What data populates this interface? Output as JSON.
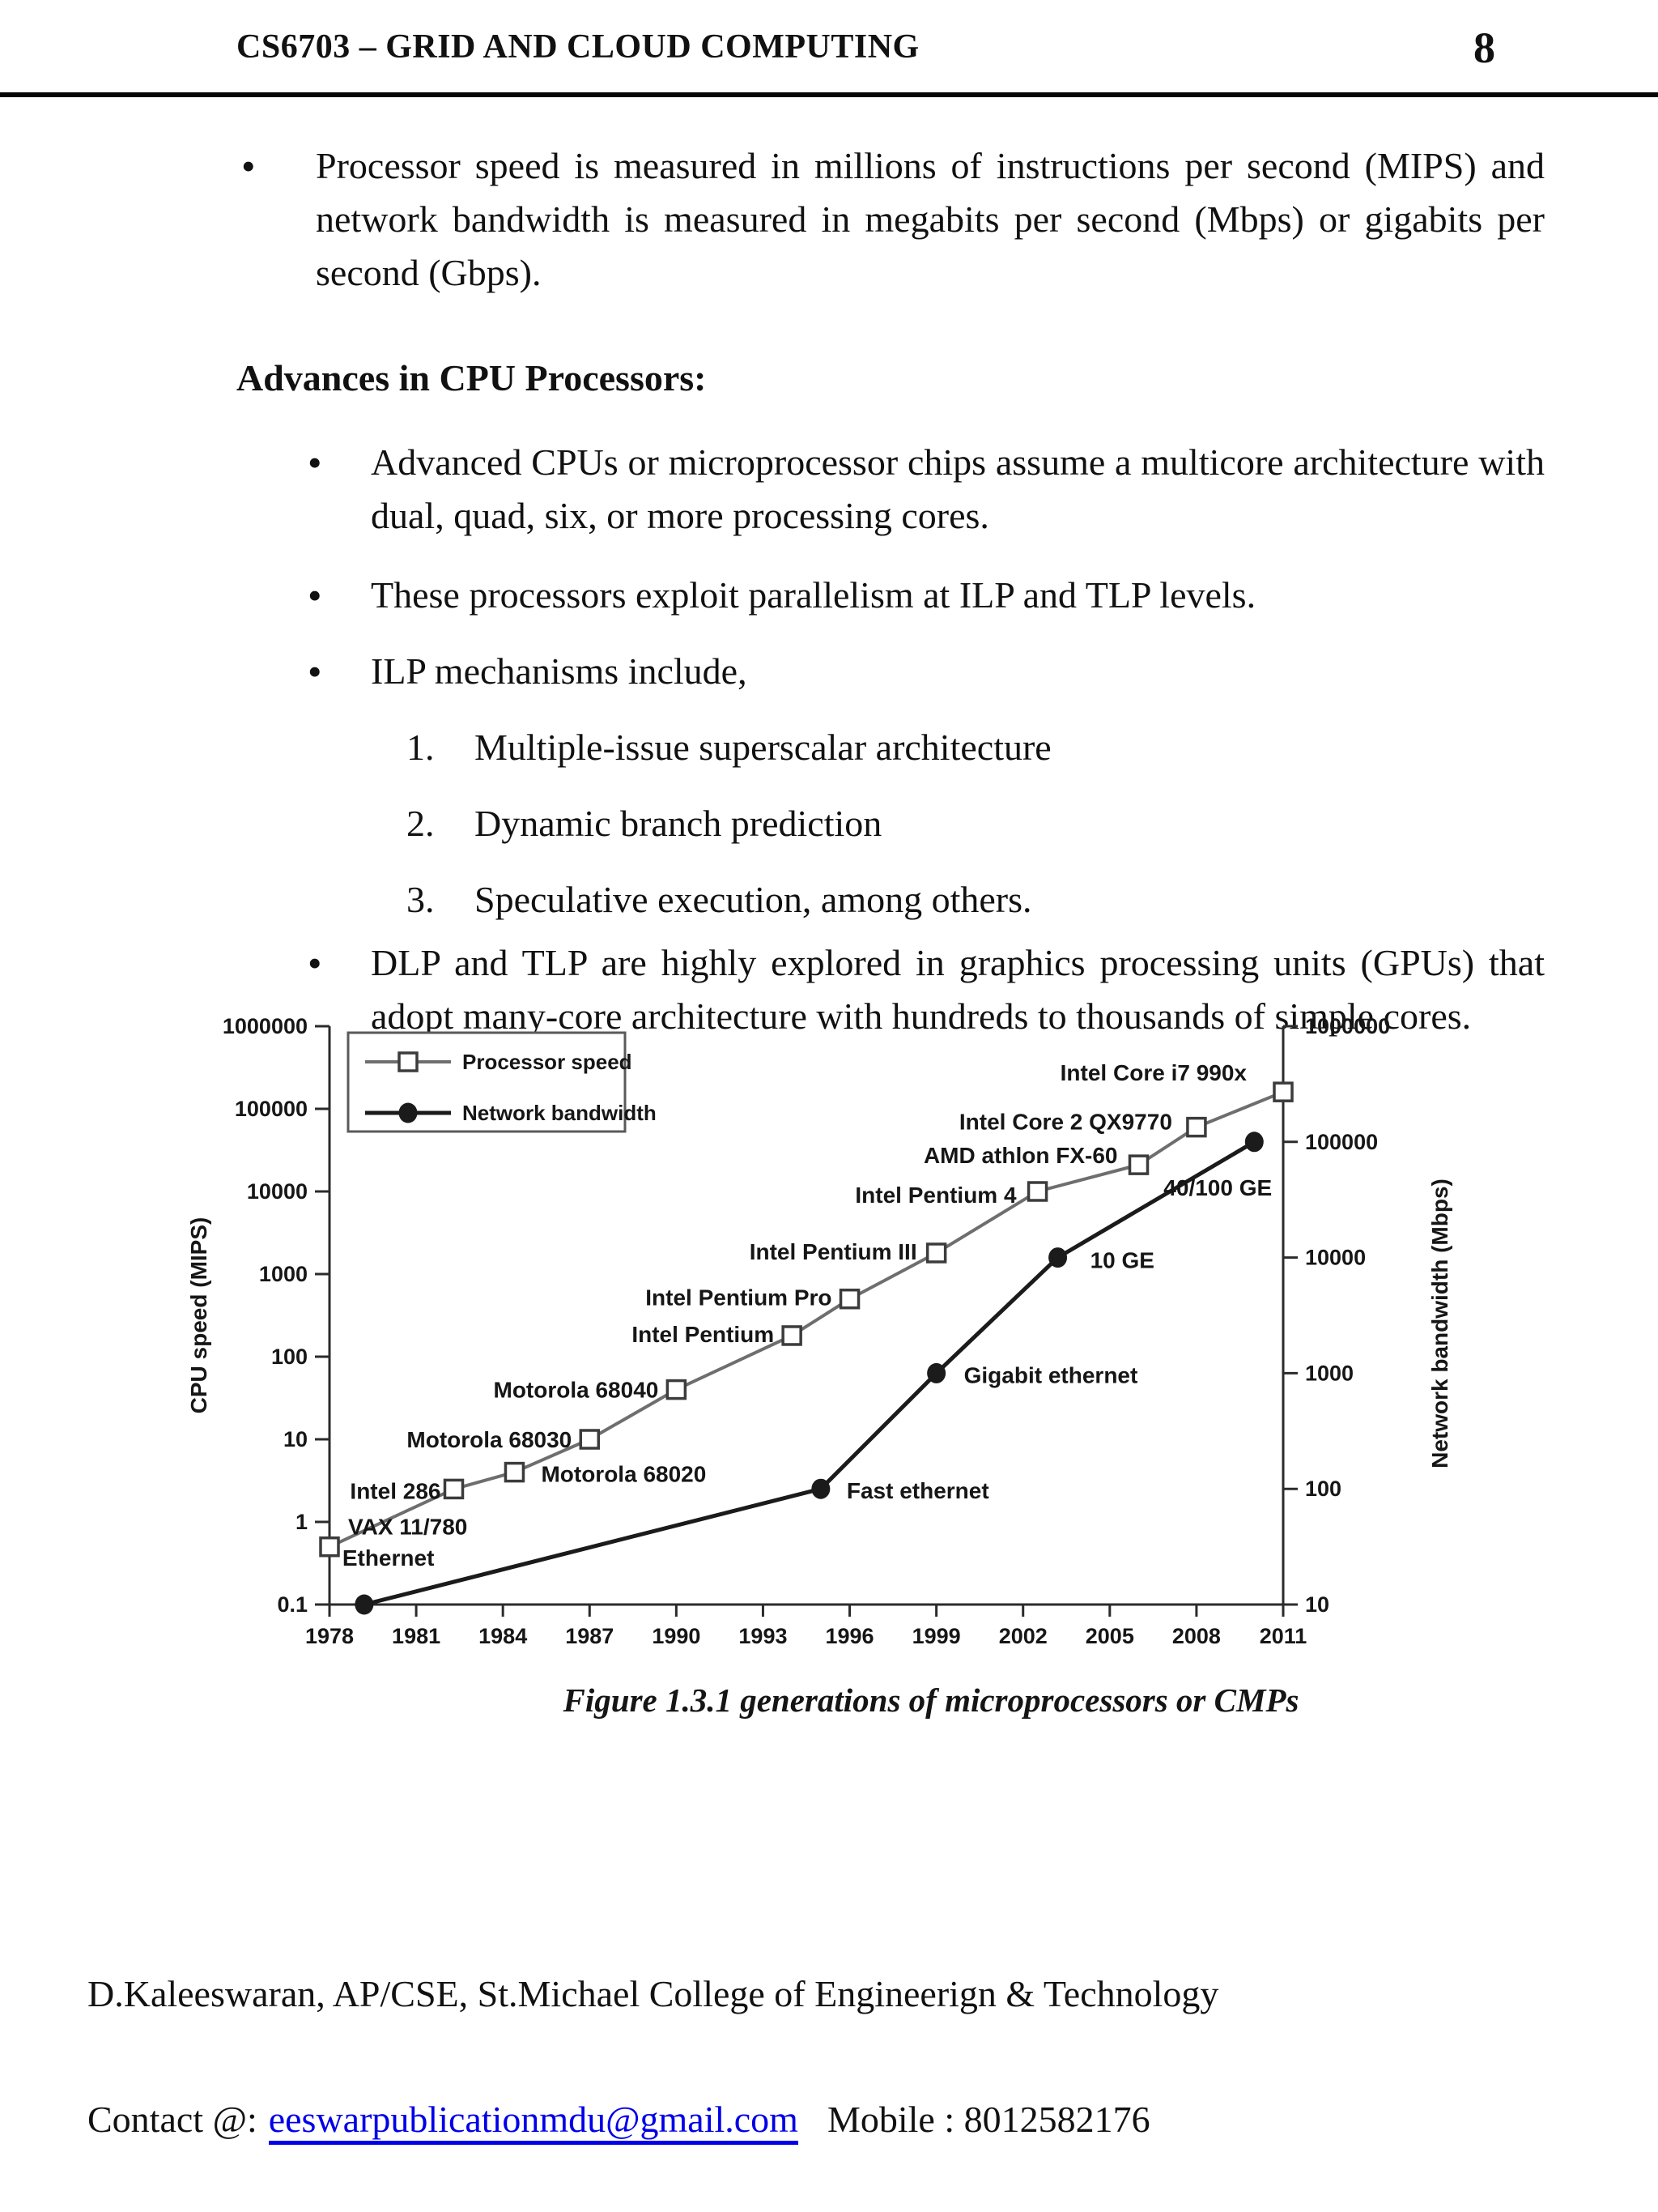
{
  "header": {
    "title": "CS6703 – GRID AND CLOUD COMPUTING",
    "page_number": "8"
  },
  "body": {
    "bullet_symbol": "•",
    "intro_bullet": "Processor speed is measured in millions of instructions per second (MIPS) and network bandwidth is measured in megabits per second (Mbps) or gigabits per second (Gbps).",
    "section_heading": "Advances in CPU Processors:",
    "bullets": [
      {
        "text": "Advanced CPUs or microprocessor chips assume a multicore architecture with dual, quad, six, or more processing cores."
      },
      {
        "text": "These processors exploit parallelism at ILP and TLP levels."
      },
      {
        "text": "ILP mechanisms include,"
      }
    ],
    "numbered_items": [
      {
        "num": "1.",
        "text": "Multiple-issue superscalar architecture"
      },
      {
        "num": "2.",
        "text": "Dynamic branch prediction"
      },
      {
        "num": "3.",
        "text": "Speculative execution, among others."
      }
    ],
    "closing_bullet": "DLP and TLP are highly explored in graphics processing units (GPUs) that adopt many-core architecture with hundreds to thousands of simple cores."
  },
  "figure": {
    "caption": "Figure 1.3.1 generations of microprocessors or CMPs"
  },
  "chart_data": {
    "type": "line",
    "title": "",
    "xlabel": "",
    "x_axis": {
      "ticks": [
        1978,
        1981,
        1984,
        1987,
        1990,
        1993,
        1996,
        1999,
        2002,
        2005,
        2008,
        2011
      ],
      "range": [
        1978,
        2011
      ]
    },
    "left_axis": {
      "label": "CPU speed (MIPS)",
      "scale": "log",
      "range": [
        0.1,
        1000000
      ],
      "tick_labels": [
        "0.1",
        "1",
        "10",
        "100",
        "1000",
        "10000",
        "100000",
        "1000000"
      ]
    },
    "right_axis": {
      "label": "Network bandwidth (Mbps)",
      "scale": "log",
      "range": [
        10,
        1000000
      ],
      "tick_labels": [
        "10",
        "100",
        "1000",
        "10000",
        "100000",
        "1000000"
      ]
    },
    "grid": false,
    "legend": {
      "position": "top-left",
      "entries": [
        {
          "label": "Processor speed",
          "marker": "open-square",
          "color": "#6e6e6e"
        },
        {
          "label": "Network bandwidth",
          "marker": "filled-circle",
          "color": "#1b1b1b"
        }
      ]
    },
    "series": [
      {
        "name": "Processor speed",
        "axis": "left",
        "marker": "open-square",
        "color": "#6e6e6e",
        "points": [
          {
            "x": 1978,
            "y": 0.5,
            "label": "VAX 11/780",
            "anchor": "start",
            "dx": 23,
            "dy": -15
          },
          {
            "x": 1982.3,
            "y": 2.5,
            "label": "Intel 286",
            "anchor": "end",
            "dx": -16,
            "dy": 12
          },
          {
            "x": 1984.4,
            "y": 4,
            "label": "Motorola 68020",
            "anchor": "start",
            "dx": 33,
            "dy": 12
          },
          {
            "x": 1987,
            "y": 10,
            "label": "Motorola 68030",
            "anchor": "end",
            "dx": -22,
            "dy": 10
          },
          {
            "x": 1990,
            "y": 40,
            "label": "Motorola 68040",
            "anchor": "end",
            "dx": -22,
            "dy": 10
          },
          {
            "x": 1994,
            "y": 180,
            "label": "Intel Pentium",
            "anchor": "end",
            "dx": -22,
            "dy": 8
          },
          {
            "x": 1996,
            "y": 500,
            "label": "Intel Pentium Pro",
            "anchor": "end",
            "dx": -22,
            "dy": 8
          },
          {
            "x": 1999,
            "y": 1800,
            "label": "Intel Pentium III",
            "anchor": "end",
            "dx": -24,
            "dy": 8
          },
          {
            "x": 2002.5,
            "y": 10000,
            "label": "Intel Pentium 4",
            "anchor": "end",
            "dx": -26,
            "dy": 14
          },
          {
            "x": 2006,
            "y": 21000,
            "label": "AMD athlon FX-60",
            "anchor": "end",
            "dx": -26,
            "dy": -2
          },
          {
            "x": 2008,
            "y": 60000,
            "label": "Intel Core 2 QX9770",
            "anchor": "end",
            "dx": -30,
            "dy": 3
          },
          {
            "x": 2011,
            "y": 160000,
            "label": "Intel Core i7 990x",
            "anchor": "end",
            "dx": -45,
            "dy": -14
          }
        ]
      },
      {
        "name": "Network bandwidth",
        "axis": "right",
        "marker": "filled-circle",
        "color": "#1b1b1b",
        "points": [
          {
            "x": 1979.2,
            "y": 10,
            "label": "Ethernet",
            "anchor": "start",
            "dx": -27,
            "dy": -48
          },
          {
            "x": 1995,
            "y": 100,
            "label": "Fast ethernet",
            "anchor": "start",
            "dx": 32,
            "dy": 12
          },
          {
            "x": 1999,
            "y": 1000,
            "label": "Gigabit ethernet",
            "anchor": "start",
            "dx": 34,
            "dy": 12
          },
          {
            "x": 2003.2,
            "y": 10000,
            "label": "10 GE",
            "anchor": "start",
            "dx": 40,
            "dy": 13
          },
          {
            "x": 2010,
            "y": 100000,
            "label": "40/100 GE",
            "anchor": "start",
            "dx": -112,
            "dy": 66
          }
        ]
      }
    ]
  },
  "footer": {
    "affiliation": "D.Kaleeswaran, AP/CSE, St.Michael College of Engineerign & Technology",
    "contact_label": "Contact @:",
    "email": "eeswarpublicationmdu@gmail.com",
    "mobile": "Mobile : 8012582176",
    "link_color": "#0000e8"
  }
}
